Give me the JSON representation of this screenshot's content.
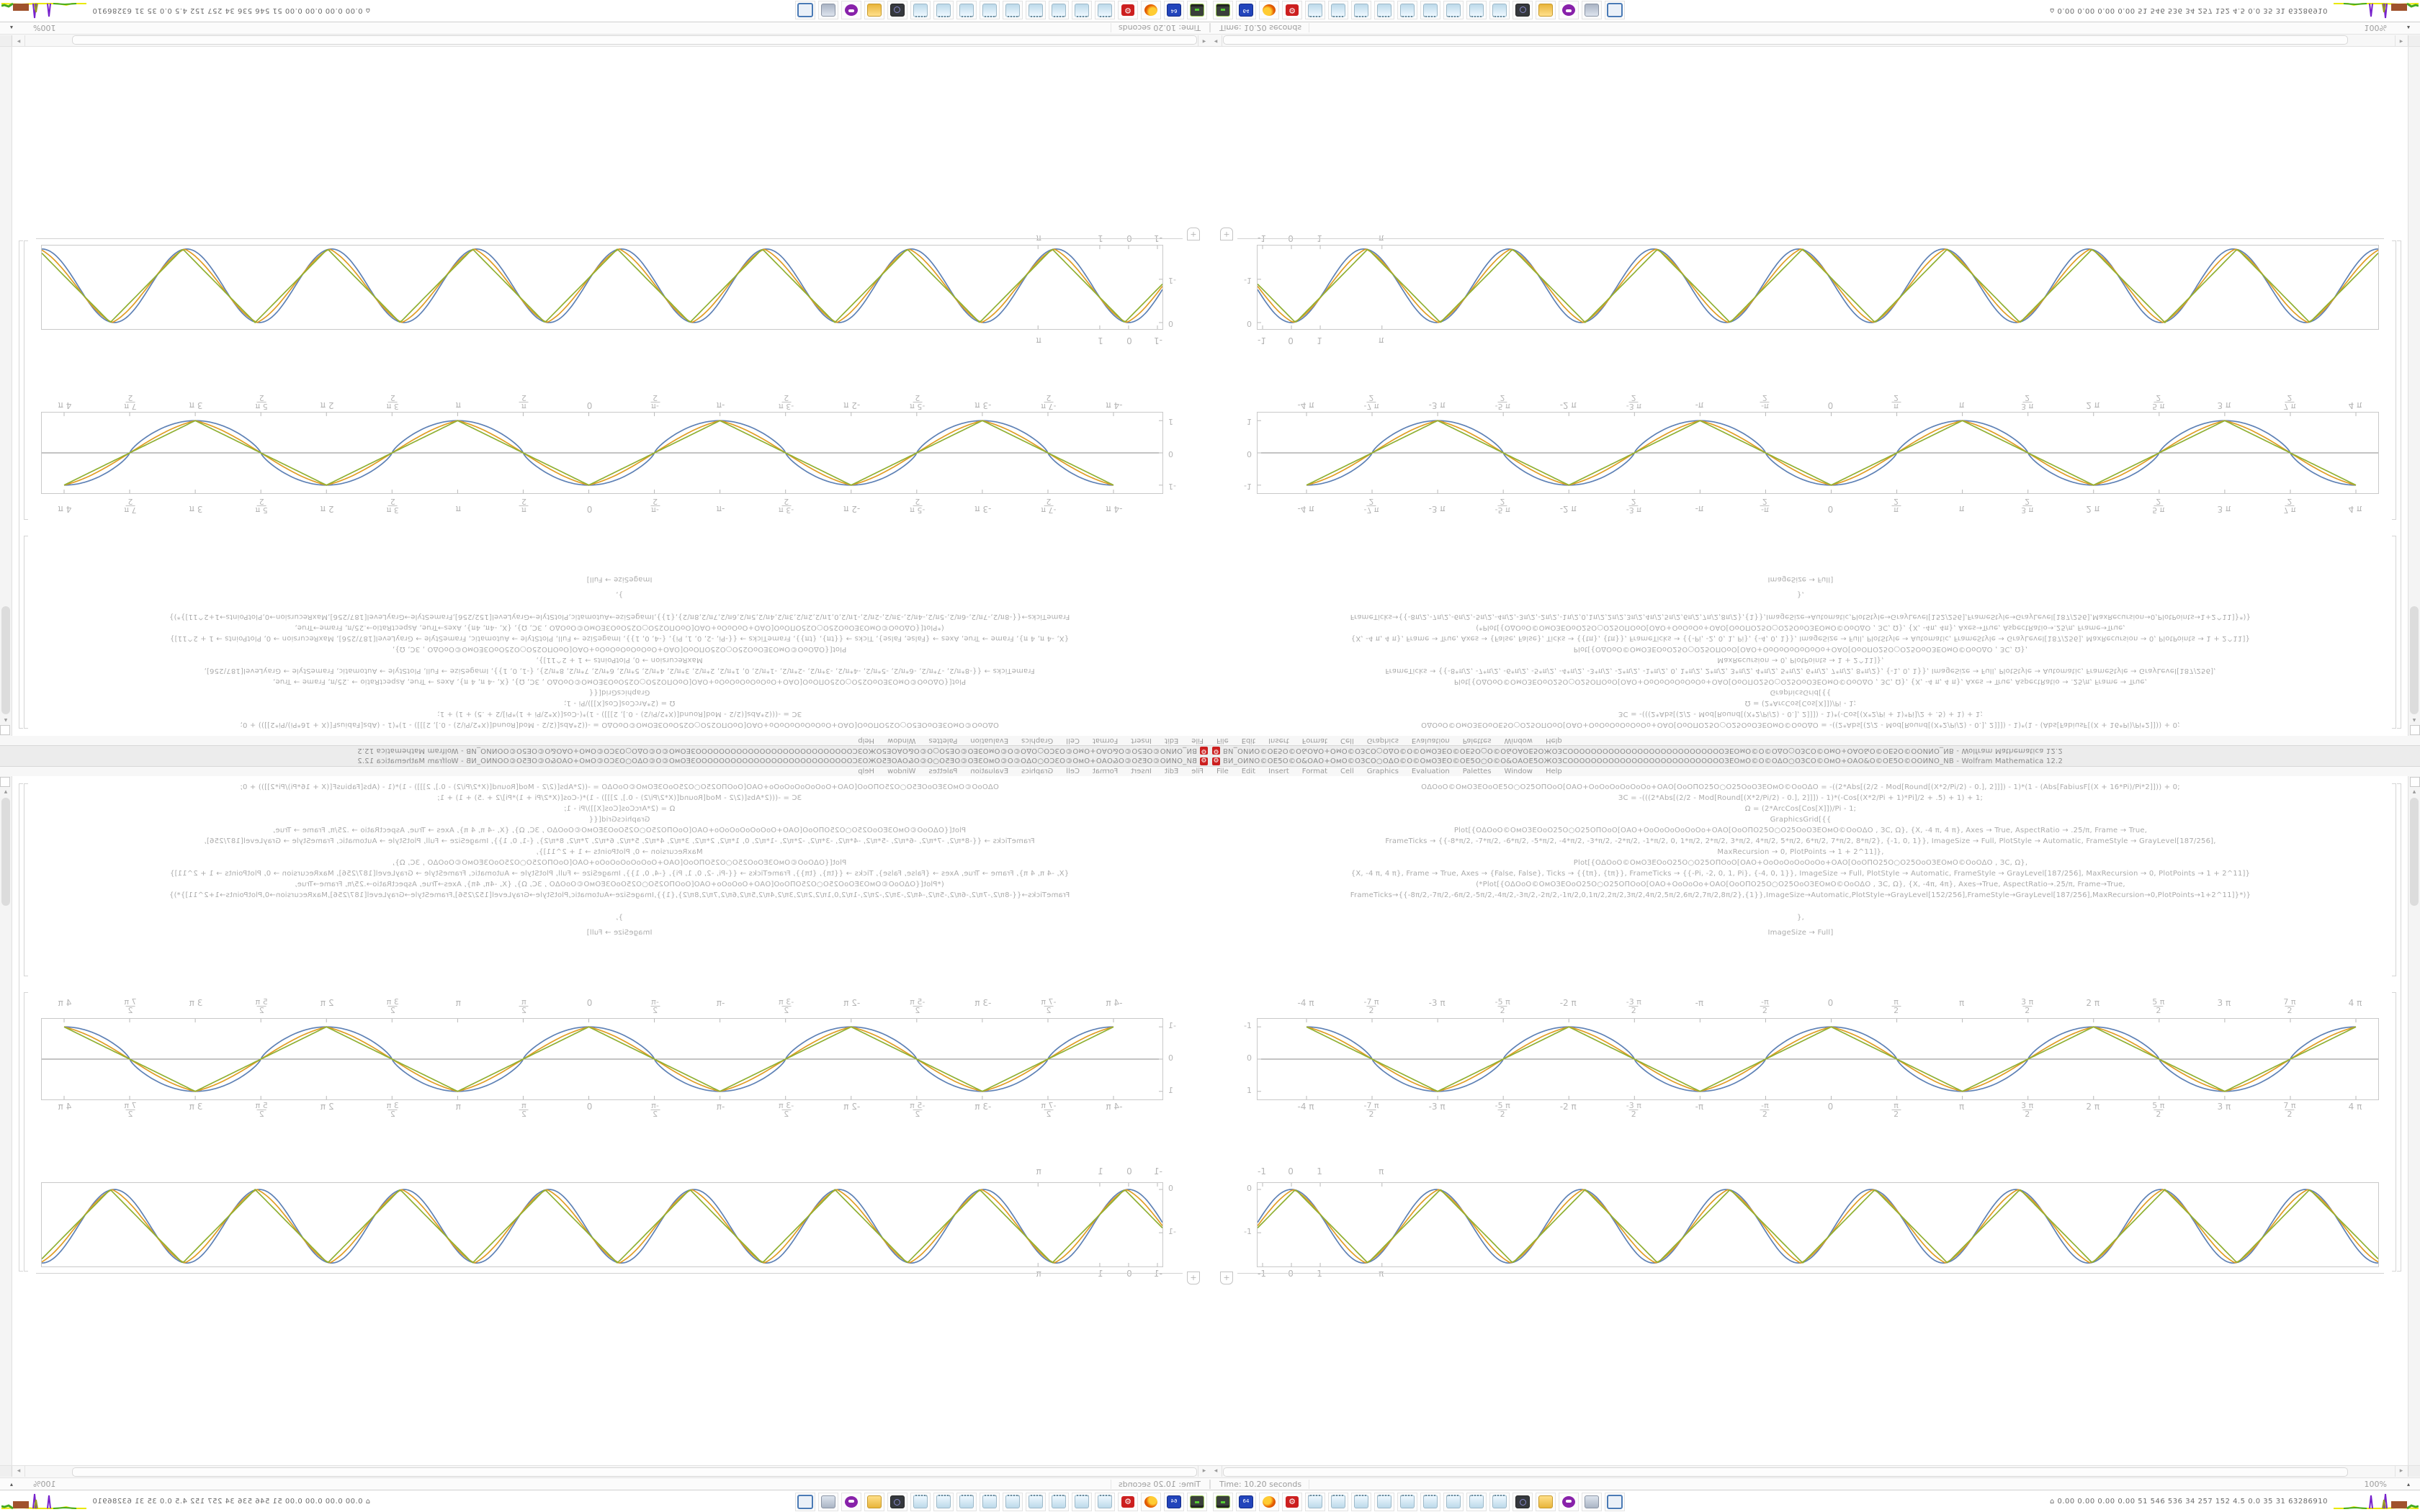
{
  "window": {
    "title": "ВИ_ОИNО©ОЕ5О©О&ОАО+ОмО©ОЗСО○ОΔО©О©ОмОЗЕО©ОЕ5О○О©О&ОАОЕ5ОЖОЗСОООООООООООООООООООООООООООЗЕОмО©О©ОΔО○ОЗСО©ОмО+ОАО&О©ОЕ5О©ООИNО_NB - Wolfram Mathematica 12.2",
    "app_icon": "⚙",
    "accent_red": "#cc1f1f"
  },
  "menu": {
    "items": [
      "File",
      "Edit",
      "Insert",
      "Format",
      "Cell",
      "Graphics",
      "Evaluation",
      "Palettes",
      "Window",
      "Help"
    ]
  },
  "notebook": {
    "code_lines": [
      "ОΔОоО©ОмОЗЕОоОЕ5О○О25ОПОоО[ОАО+ОоОоОоОоОоОо+ОАО[ОоОПО25О○О25ОоОЗЕОмО©ОоОΔО = -((2*Abs[(2/2 - Mod[Round[(X*2/Pi/2) - 0.], 2]]]) - 1)*(1 - (Abs[FabiusF[(X + 16*Pi)/Pi*2]])) + 0;",
      "ЗС = -(((2*Abs[(2/2 - Mod[Round[(X*2/Pi/2) - 0.], 2]]]) - 1)*(-Cos[(X*2/Pi + 1)*Pi]/2 + .5) + 1) + 1;",
      "Ω = (2*ArcCos[Cos[X]])/Pi - 1;",
      "GraphicsGrid[{{",
      "Plot[{ОΔОоО©ОмОЗЕОоО25О○О25ОПОоО[ОАО+ОоОоОоОоОоОо+ОАО[ОоОПО25О○О25ОоОЗЕОмО©ОоОΔО , ЗС, Ω}, {X, -4 π, 4 π}, Axes → True, AspectRatio → .25/π, Frame → True,",
      "FrameTicks → {{-8*π/2, -7*π/2, -6*π/2, -5*π/2, -4*π/2, -3*π/2, -2*π/2, -1*π/2, 0, 1*π/2, 2*π/2, 3*π/2, 4*π/2, 5*π/2, 6*π/2, 7*π/2, 8*π/2}, {-1, 0, 1}}, ImageSize → Full, PlotStyle → Automatic, FrameStyle → GrayLevel[187/256],",
      "MaxRecursion → 0, PlotPoints → 1 + 2^11]},",
      "Plot[{ОΔОоО©ОмОЗЕОоО25О○О25ОПОоО[ОАО+ОоОоОоОоОоОо+ОАО[ОоОПО25О○О25ОоОЗЕОмО©ОоОΔО , ЗС, Ω},",
      "{X, -4 π, 4 π}, Frame → True, Axes → {False, False}, Ticks → {{tπ}, {tπ}}, FrameTicks → {{-Pi, -2, 0, 1, Pi}, {-4, 0, 1}}, ImageSize → Full, PlotStyle → Automatic, FrameStyle → GrayLevel[187/256], MaxRecursion → 0, PlotPoints → 1 + 2^11]}",
      "(*Plot[{ОΔОоО©ОмОЗЕОоО25О○О25ОПОоО[ОАО+ОоОоОо+ОАО[ОоОПО25О○О25ОоОЗЕОмО©ОоОΔО , ЗС, Ω}, {X, -4π, 4π}, Axes→True, AspectRatio→.25/π, Frame→True,",
      "FrameTicks→{{-8π/2,-7π/2,-6π/2,-5π/2,-4π/2,-3π/2,-2π/2,-1π/2,0,1π/2,2π/2,3π/2,4π/2,5π/2,6π/2,7π/2,8π/2},{1}},ImageSize→Automatic,PlotStyle→GrayLevel[152/256],FrameStyle→GrayLevel[187/256],MaxRecursion→0,PlotPoints→1+2^11]}*)}",
      "},",
      "ImageSize → Full]"
    ],
    "insertion_plus": "+"
  },
  "chart_data": [
    {
      "id": "grid-plot",
      "type": "line",
      "title": "",
      "xlabel": "",
      "ylabel": "",
      "x_range": [
        -12.566,
        12.566
      ],
      "y_range": [
        -1.25,
        1.25
      ],
      "grid": false,
      "legend": "none",
      "axis_line": true,
      "x_ticks": [
        {
          "v": -12.566,
          "label": "-4 π"
        },
        {
          "v": -10.996,
          "label": "-7 π",
          "den": "2"
        },
        {
          "v": -9.4248,
          "label": "-3 π"
        },
        {
          "v": -7.854,
          "label": "-5 π",
          "den": "2"
        },
        {
          "v": -6.2832,
          "label": "-2 π"
        },
        {
          "v": -4.7124,
          "label": "-3 π",
          "den": "2"
        },
        {
          "v": -3.1416,
          "label": "-π"
        },
        {
          "v": -1.5708,
          "label": "-π",
          "den": "2"
        },
        {
          "v": 0,
          "label": "0"
        },
        {
          "v": 1.5708,
          "label": "π",
          "den": "2"
        },
        {
          "v": 3.1416,
          "label": "π"
        },
        {
          "v": 4.7124,
          "label": "3 π",
          "den": "2"
        },
        {
          "v": 6.2832,
          "label": "2 π"
        },
        {
          "v": 7.854,
          "label": "5 π",
          "den": "2"
        },
        {
          "v": 9.4248,
          "label": "3 π"
        },
        {
          "v": 10.996,
          "label": "7 π",
          "den": "2"
        },
        {
          "v": 12.566,
          "label": "4 π"
        }
      ],
      "y_ticks": [
        {
          "v": 1,
          "label": "1"
        },
        {
          "v": 0,
          "label": "0"
        },
        {
          "v": -1,
          "label": "-1"
        }
      ],
      "series": [
        {
          "name": "fabius-smoothed-wave",
          "color": "#5e81b5",
          "shape": "smooth"
        },
        {
          "name": "cosine-wave",
          "color": "#e19c24",
          "shape": "mixed"
        },
        {
          "name": "triangle-wave",
          "color": "#8fb032",
          "shape": "triangle"
        }
      ]
    },
    {
      "id": "lower-plot",
      "type": "line",
      "title": "",
      "xlabel": "",
      "ylabel": "",
      "x_range": [
        -1.175,
        37.7
      ],
      "y_range": [
        0.15,
        -1.78
      ],
      "grid": false,
      "legend": "none",
      "axis_line": false,
      "x_ticks": [
        {
          "v": -1,
          "label": "-1"
        },
        {
          "v": 0,
          "label": "0"
        },
        {
          "v": 1,
          "label": "1"
        },
        {
          "v": 3.1416,
          "label": "π"
        }
      ],
      "y_ticks": [
        {
          "v": 0,
          "label": "0"
        },
        {
          "v": -1,
          "label": "-1"
        }
      ],
      "series": [
        {
          "name": "fabius-smoothed-wave",
          "color": "#5e81b5",
          "shape": "smooth"
        },
        {
          "name": "cosine-wave",
          "color": "#e19c24",
          "shape": "mixed"
        },
        {
          "name": "triangle-wave",
          "color": "#8fb032",
          "shape": "triangle"
        }
      ]
    }
  ],
  "status_bar": {
    "time_text": "Time: 10.20 seconds",
    "zoom_level": "100%",
    "zoom_arrow": "▴"
  },
  "scrollbars": {
    "left_arrow": "◂",
    "right_arrow": "▸",
    "up_arrow": "▴"
  },
  "taskbar": {
    "icons": [
      {
        "name": "drive-indicator-icon",
        "style": "drive"
      },
      {
        "name": "floppy-64-icon",
        "style": "floppy",
        "label": "64"
      },
      {
        "name": "firefox-icon",
        "style": "firefox"
      },
      {
        "name": "mathematica-gear-icon",
        "style": "gear",
        "label": "⚙"
      },
      {
        "name": "notepad-icon",
        "style": "notepad"
      },
      {
        "name": "notepad-icon",
        "style": "notepad"
      },
      {
        "name": "notepad-icon",
        "style": "notepad"
      },
      {
        "name": "notepad-icon",
        "style": "notepad"
      },
      {
        "name": "notepad-icon",
        "style": "notepad"
      },
      {
        "name": "notepad-icon",
        "style": "notepad"
      },
      {
        "name": "notepad-icon",
        "style": "notepad"
      },
      {
        "name": "notepad-icon",
        "style": "notepad"
      },
      {
        "name": "notepad-icon",
        "style": "notepad"
      },
      {
        "name": "monitor-settings-icon",
        "style": "monitor"
      },
      {
        "name": "folder-icon",
        "style": "folder"
      },
      {
        "name": "mascot-icon",
        "style": "mascot"
      },
      {
        "name": "printer-icon",
        "style": "printer"
      },
      {
        "name": "window-icon",
        "style": "window"
      }
    ],
    "monitor_values": "⌂  0.00 0.00 0.00 0.00   51   546  536   34   257   152   4.5   0.0   35   31  63286910",
    "sparkline_colors": {
      "yellow": "#e8e800",
      "green": "#44aa22",
      "purple": "#7722cc",
      "brown": "#a0522d",
      "olive": "#9a9a22"
    }
  }
}
